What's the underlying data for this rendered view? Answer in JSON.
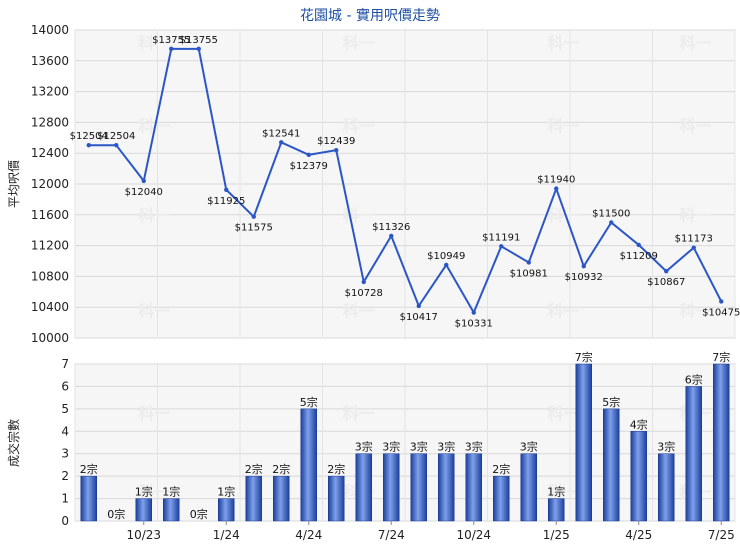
{
  "chart_data": [
    {
      "type": "line",
      "title": "花園城 - 實用呎價走勢",
      "ylabel": "平均呎價",
      "ylim": [
        10000,
        14000
      ],
      "yticks": [
        10000,
        10400,
        10800,
        11200,
        11600,
        12000,
        12400,
        12800,
        13200,
        13600,
        14000
      ],
      "grid": true,
      "values": [
        12504,
        12504,
        12040,
        13755,
        13755,
        11925,
        11575,
        12541,
        12379,
        12439,
        10728,
        11326,
        10417,
        10949,
        10331,
        11191,
        10981,
        11940,
        10932,
        11500,
        11209,
        10867,
        11173,
        10475
      ],
      "labels": [
        "$12504",
        "$12504",
        "$12040",
        "$13755",
        "$13755",
        "$11925",
        "$11575",
        "$12541",
        "$12379",
        "$12439",
        "$10728",
        "$11326",
        "$10417",
        "$10949",
        "$10331",
        "$11191",
        "$10981",
        "$11940",
        "$10932",
        "$11500",
        "$11209",
        "$10867",
        "$11173",
        "$10475"
      ],
      "color": "#2a56c6",
      "watermark": "科一"
    },
    {
      "type": "bar",
      "ylabel": "成交宗數",
      "ylim": [
        0,
        7
      ],
      "yticks": [
        0,
        1,
        2,
        3,
        4,
        5,
        6,
        7
      ],
      "grid": true,
      "values": [
        2,
        0,
        1,
        1,
        0,
        1,
        2,
        2,
        5,
        2,
        3,
        3,
        3,
        3,
        3,
        2,
        3,
        1,
        7,
        5,
        4,
        3,
        6,
        7
      ],
      "labels": [
        "2宗",
        "0宗",
        "1宗",
        "1宗",
        "0宗",
        "1宗",
        "2宗",
        "2宗",
        "5宗",
        "2宗",
        "3宗",
        "3宗",
        "3宗",
        "3宗",
        "3宗",
        "2宗",
        "3宗",
        "1宗",
        "7宗",
        "5宗",
        "4宗",
        "3宗",
        "6宗",
        "7宗"
      ],
      "xtick_labels": [
        "10/23",
        "1/24",
        "4/24",
        "7/24",
        "10/24",
        "1/25",
        "4/25",
        "7/25"
      ],
      "color": "#2a56c6",
      "watermark": "科一"
    }
  ]
}
